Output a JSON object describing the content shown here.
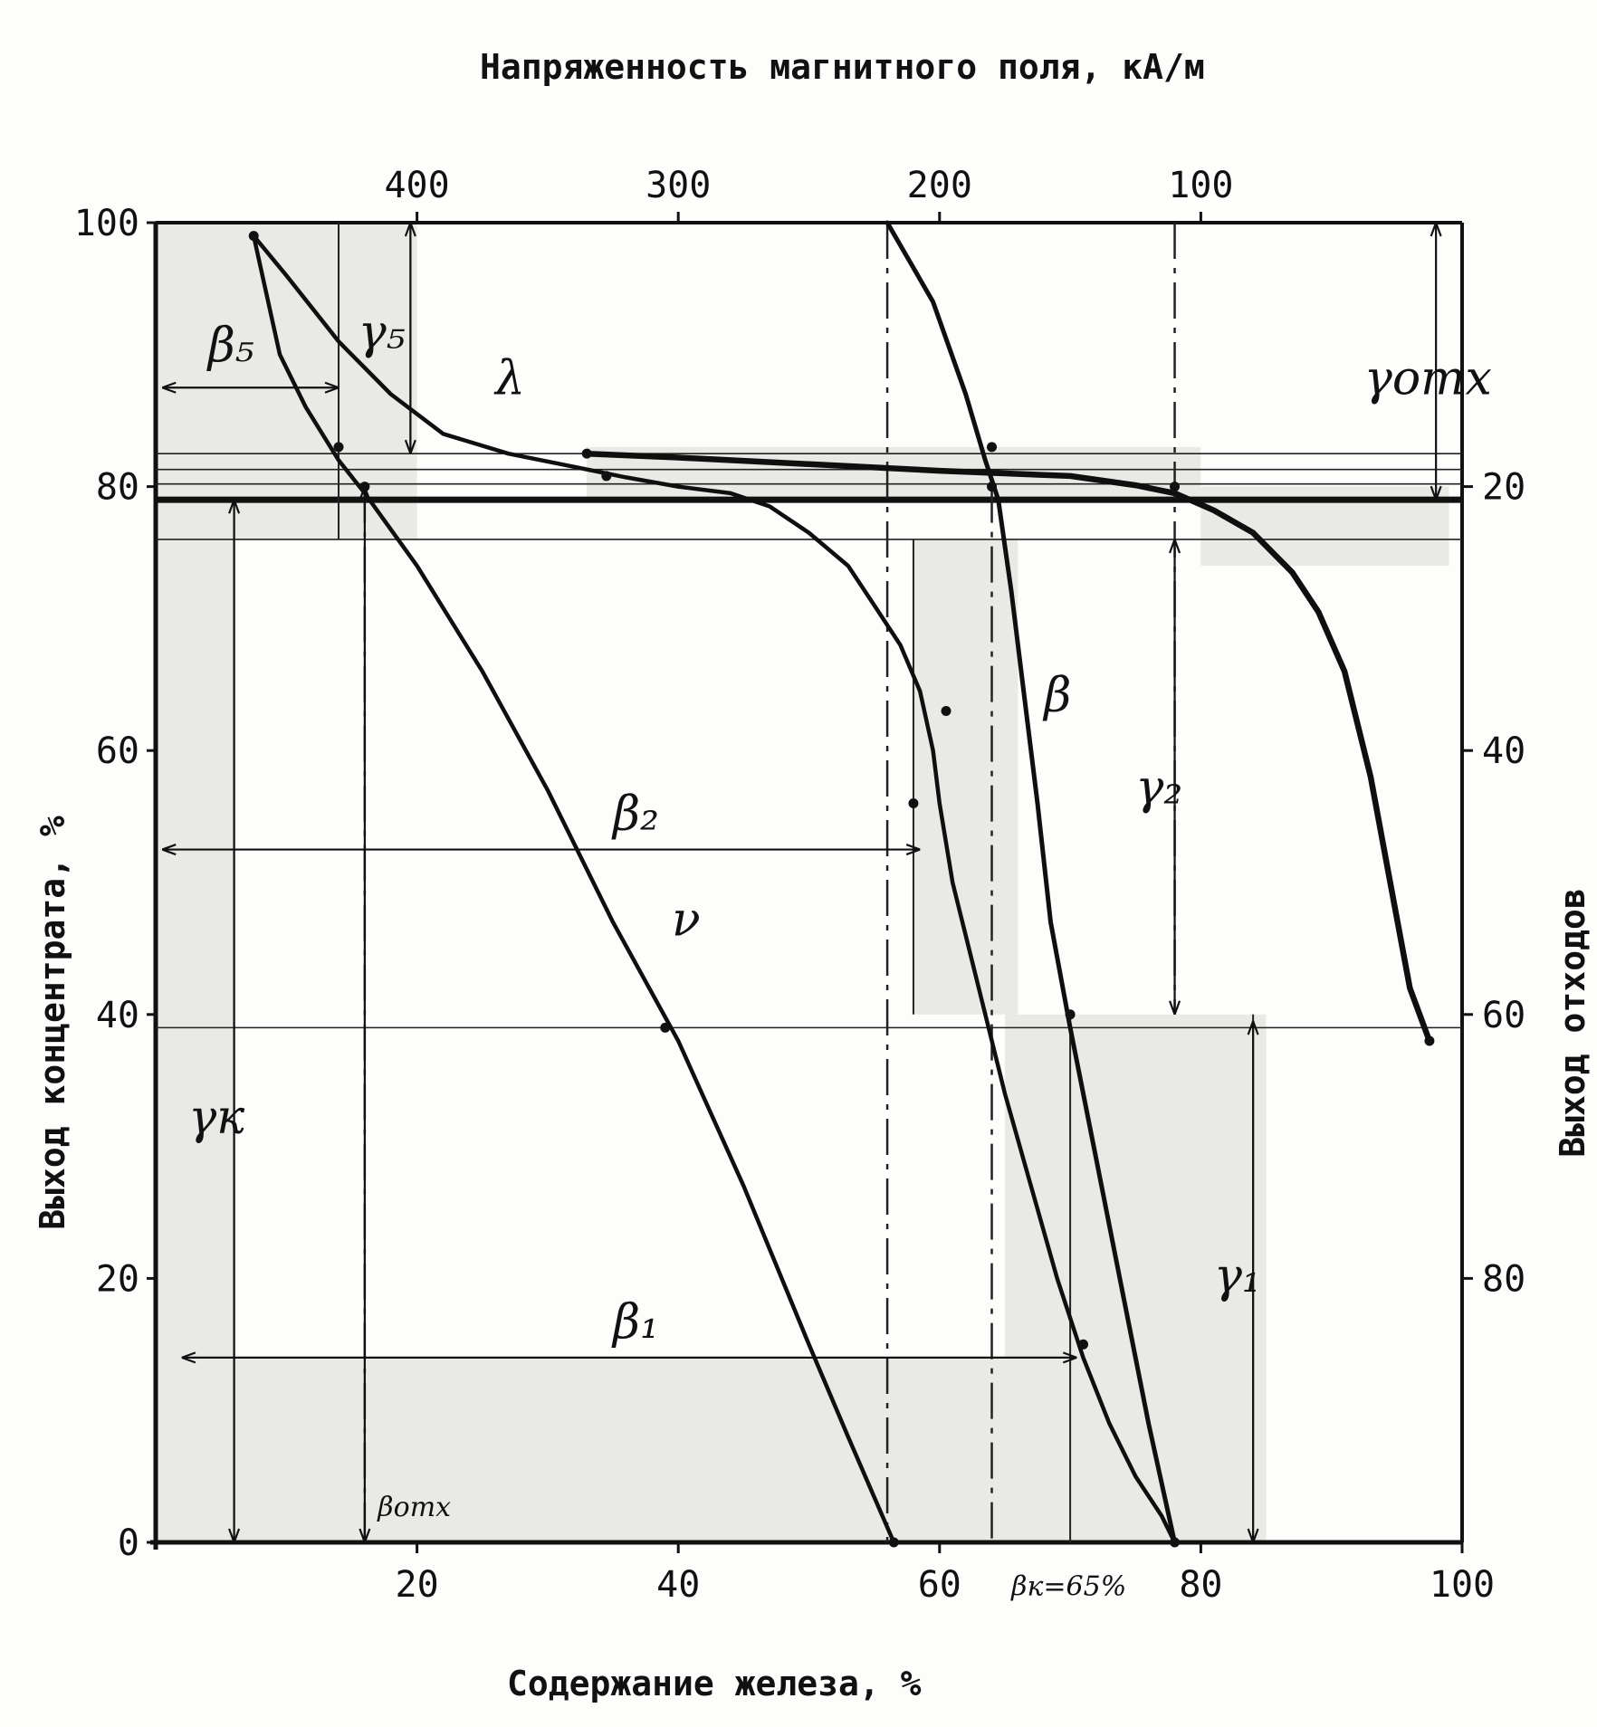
{
  "chart_data": {
    "type": "line",
    "title": "Напряженность магнитного поля, кА/м",
    "xlabel": "Содержание железа, %",
    "ylabel": "Выход концентрата, %",
    "y2label": "Выход отходов",
    "x_ticks": [
      "20",
      "40",
      "60",
      "80",
      "100"
    ],
    "y_ticks": [
      "0",
      "20",
      "40",
      "60",
      "80",
      "100"
    ],
    "y2_ticks": [
      "20",
      "40",
      "60",
      "80"
    ],
    "top_ticks": [
      "400",
      "300",
      "200",
      "100"
    ],
    "xlim": [
      0,
      100
    ],
    "ylim": [
      0,
      100
    ],
    "y2lim": [
      0,
      100
    ],
    "top_lim": [
      500,
      0
    ],
    "grid": false,
    "annotations": {
      "lambda": "λ",
      "nu": "ν",
      "beta": "β",
      "beta1": "β₁",
      "beta2": "β₂",
      "beta5": "β₅",
      "gamma1": "γ₁",
      "gamma2": "γ₂",
      "gamma5": "γ₅",
      "gamma_k": "γк",
      "gamma_otx": "γотх",
      "beta_otx": "βотх",
      "beta_k": "βк=65%"
    },
    "series": [
      {
        "key": "lambda",
        "label": "λ",
        "x": [
          7.5,
          10,
          14,
          18,
          22,
          27,
          32,
          36,
          40,
          44,
          47,
          50,
          53,
          55,
          57,
          58.5,
          59.5,
          60,
          61,
          63,
          65,
          67,
          69,
          71,
          73,
          75,
          77,
          78
        ],
        "y": [
          99,
          96,
          91,
          87,
          84,
          82.5,
          81.5,
          80.7,
          80,
          79.5,
          78.5,
          76.5,
          74,
          71,
          68,
          64.5,
          60,
          56,
          50,
          42,
          34,
          27,
          20,
          14,
          9,
          5,
          2,
          0
        ]
      },
      {
        "key": "nu",
        "label": "ν",
        "x": [
          7.5,
          9.5,
          11.5,
          14,
          16,
          20,
          25,
          30,
          35,
          40,
          45,
          50,
          53,
          56.5
        ],
        "y": [
          99,
          90,
          86,
          82,
          79.5,
          74,
          66,
          57,
          47,
          38,
          27,
          15,
          8,
          0
        ]
      },
      {
        "key": "beta",
        "label": "β",
        "x": [
          56,
          59.5,
          62,
          63.5,
          64.5,
          65.5,
          66.5,
          67.5,
          68.5,
          70,
          72,
          74,
          76,
          78
        ],
        "y": [
          100,
          94,
          87,
          82,
          79,
          72,
          64,
          56,
          47,
          39,
          29,
          19,
          9,
          0
        ]
      },
      {
        "key": "top-field",
        "label": "",
        "x": [
          33,
          40,
          50,
          60,
          70,
          75,
          78,
          81,
          84,
          87,
          89,
          91,
          93,
          94.5,
          96,
          97.5
        ],
        "y": [
          82.5,
          82.2,
          81.7,
          81.2,
          80.8,
          80.1,
          79.5,
          78.2,
          76.5,
          73.5,
          70.5,
          66,
          58,
          50,
          42,
          38
        ]
      }
    ]
  }
}
